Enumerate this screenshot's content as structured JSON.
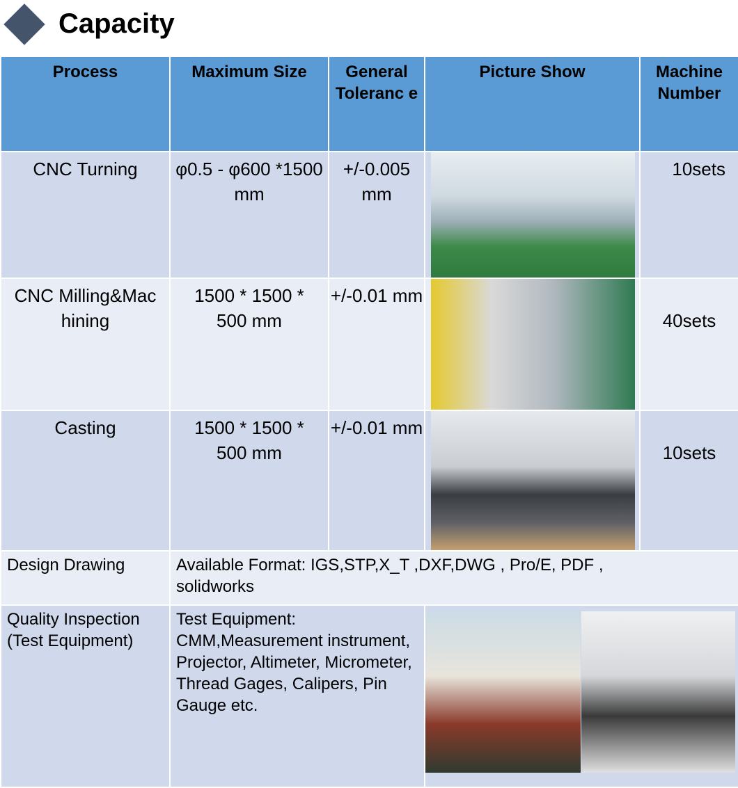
{
  "title": "Capacity",
  "colors": {
    "header": "#5b9bd5",
    "row_dark": "#cfd9eb",
    "row_light": "#e9edf5",
    "diamond": "#44546a"
  },
  "headers": [
    "Process",
    "Maximum Size",
    "General Toleranc e",
    "Picture Show",
    "Machine Number"
  ],
  "rows": [
    {
      "process": "CNC Turning",
      "size": "φ0.5 - φ600 *1500 mm",
      "tolerance": "+/-0.005 mm",
      "picture": "cnc-turning-photo",
      "number": "10sets"
    },
    {
      "process": "CNC Milling&Machining",
      "size": "1500 * 1500 * 500 mm",
      "tolerance": "+/-0.01 mm",
      "picture": "cnc-milling-photo",
      "number": "40sets"
    },
    {
      "process": "Casting",
      "size": "1500 * 1500 * 500 mm",
      "tolerance": "+/-0.01 mm",
      "picture": "casting-photo",
      "number": "10sets"
    }
  ],
  "design": {
    "label": "Design Drawing",
    "value": "Available Format: IGS,STP,X_T ,DXF,DWG , Pro/E, PDF , solidworks"
  },
  "quality": {
    "label": "Quality Inspection (Test Equipment)",
    "value": "Test Equipment: CMM,Measurement instrument, Projector, Altimeter, Micrometer, Thread Gages, Calipers, Pin Gauge etc."
  }
}
